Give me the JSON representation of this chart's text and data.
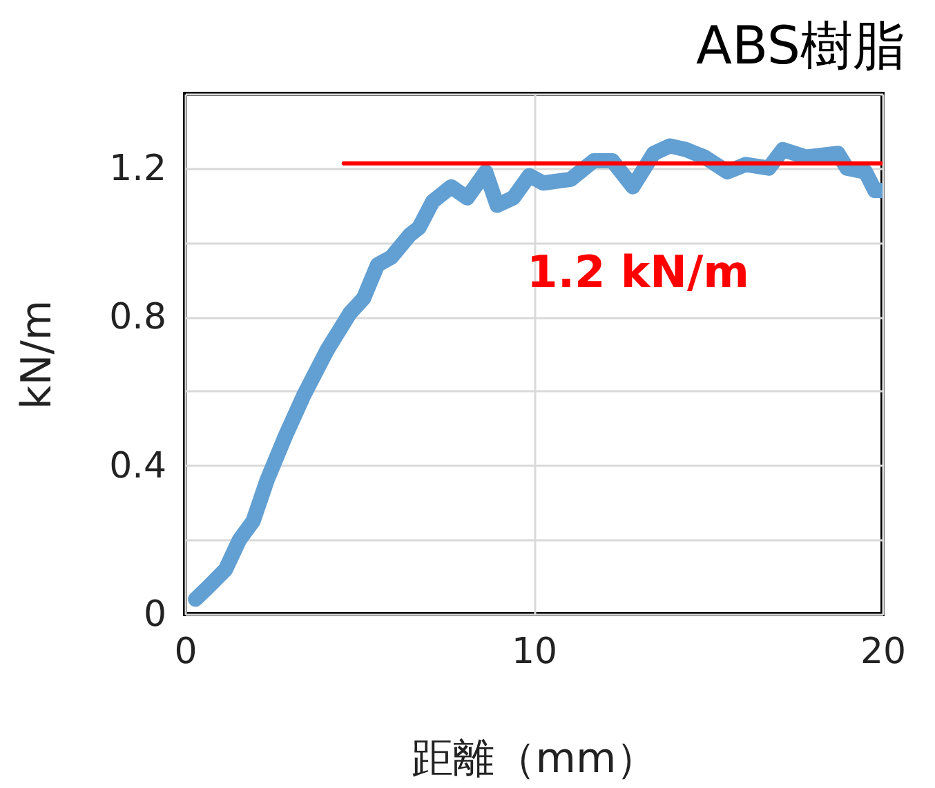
{
  "chart_data": {
    "type": "line",
    "title": "ABS樹脂",
    "xlabel": "距離（mm）",
    "ylabel": "kN/m",
    "xlim": [
      0,
      20
    ],
    "xticks": [
      0,
      10,
      20
    ],
    "ylim": [
      0,
      1.4
    ],
    "yticks": [
      0,
      {
        "value": 0.2,
        "label": null
      },
      0.4,
      {
        "value": 0.6,
        "label": null
      },
      0.8,
      {
        "value": 1.0,
        "label": null
      },
      1.2,
      {
        "value": 1.4,
        "label": null
      }
    ],
    "grid": true,
    "series": [
      {
        "color": "#629fd2",
        "x": [
          0.3,
          0.63,
          1.16,
          1.56,
          1.95,
          2.35,
          2.88,
          3.41,
          4.07,
          4.73,
          5.12,
          5.52,
          5.91,
          6.44,
          6.71,
          7.1,
          7.63,
          8.09,
          8.62,
          8.95,
          9.41,
          9.87,
          10.27,
          11.06,
          11.72,
          12.25,
          12.84,
          13.44,
          13.9,
          14.36,
          14.89,
          15.55,
          16.08,
          16.74,
          17.14,
          17.8,
          18.72,
          18.98,
          19.51,
          19.78,
          19.95
        ],
        "values": [
          0.04,
          0.07,
          0.12,
          0.2,
          0.25,
          0.36,
          0.48,
          0.59,
          0.71,
          0.81,
          0.85,
          0.94,
          0.96,
          1.02,
          1.04,
          1.11,
          1.15,
          1.12,
          1.19,
          1.1,
          1.12,
          1.18,
          1.16,
          1.17,
          1.22,
          1.22,
          1.15,
          1.24,
          1.26,
          1.25,
          1.23,
          1.19,
          1.21,
          1.2,
          1.25,
          1.23,
          1.24,
          1.2,
          1.19,
          1.14,
          1.14
        ]
      },
      {
        "type": "line",
        "color": "#ff0000",
        "x": [
          4.55,
          20
        ],
        "values": [
          1.213,
          1.213
        ]
      }
    ],
    "annotations": [
      "1.2 kN/m"
    ]
  }
}
